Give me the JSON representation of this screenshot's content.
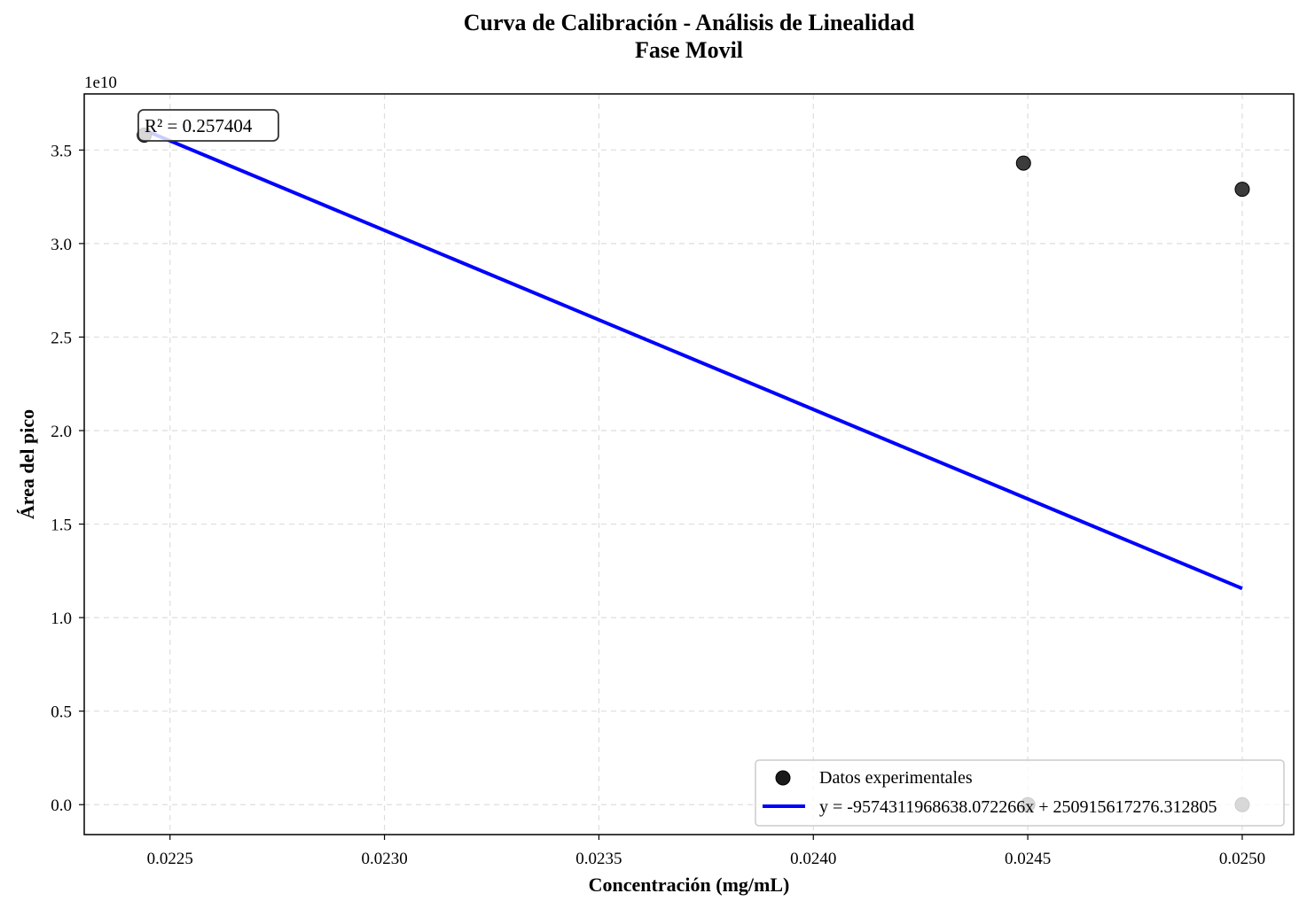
{
  "chart_data": {
    "type": "scatter",
    "title": "Curva de Calibración - Análisis de Linealidad",
    "subtitle": "Fase Movil",
    "xlabel": "Concentración (mg/mL)",
    "ylabel": "Área del pico",
    "y_scale_label": "1e10",
    "xlim": [
      0.0223,
      0.02512
    ],
    "ylim": [
      -0.16,
      3.8
    ],
    "y_unit_multiplier": 10000000000,
    "x_ticks": [
      0.0225,
      0.023,
      0.0235,
      0.024,
      0.0245,
      0.025
    ],
    "x_tick_labels": [
      "0.0225",
      "0.0230",
      "0.0235",
      "0.0240",
      "0.0245",
      "0.0250"
    ],
    "y_ticks": [
      0.0,
      0.5,
      1.0,
      1.5,
      2.0,
      2.5,
      3.0,
      3.5
    ],
    "y_tick_labels": [
      "0.0",
      "0.5",
      "1.0",
      "1.5",
      "2.0",
      "2.5",
      "3.0",
      "3.5"
    ],
    "grid": true,
    "legend_position": "lower-right",
    "series": [
      {
        "name": "Datos experimentales",
        "kind": "scatter",
        "color": "#1a1a1a",
        "points": [
          {
            "x": 0.02244,
            "y": 3.58
          },
          {
            "x": 0.02449,
            "y": 3.43
          },
          {
            "x": 0.0245,
            "y": 0.0
          },
          {
            "x": 0.025,
            "y": 3.29
          },
          {
            "x": 0.025,
            "y": 0.0
          }
        ]
      },
      {
        "name": "y = -9574311968638.072266x + 250915617276.312805",
        "kind": "line",
        "color": "#0000ff",
        "x_range": [
          0.02244,
          0.025
        ],
        "slope": -9574311968638.072,
        "intercept": 250915617276.3128
      }
    ],
    "annotation": "R² = 0.257404"
  }
}
